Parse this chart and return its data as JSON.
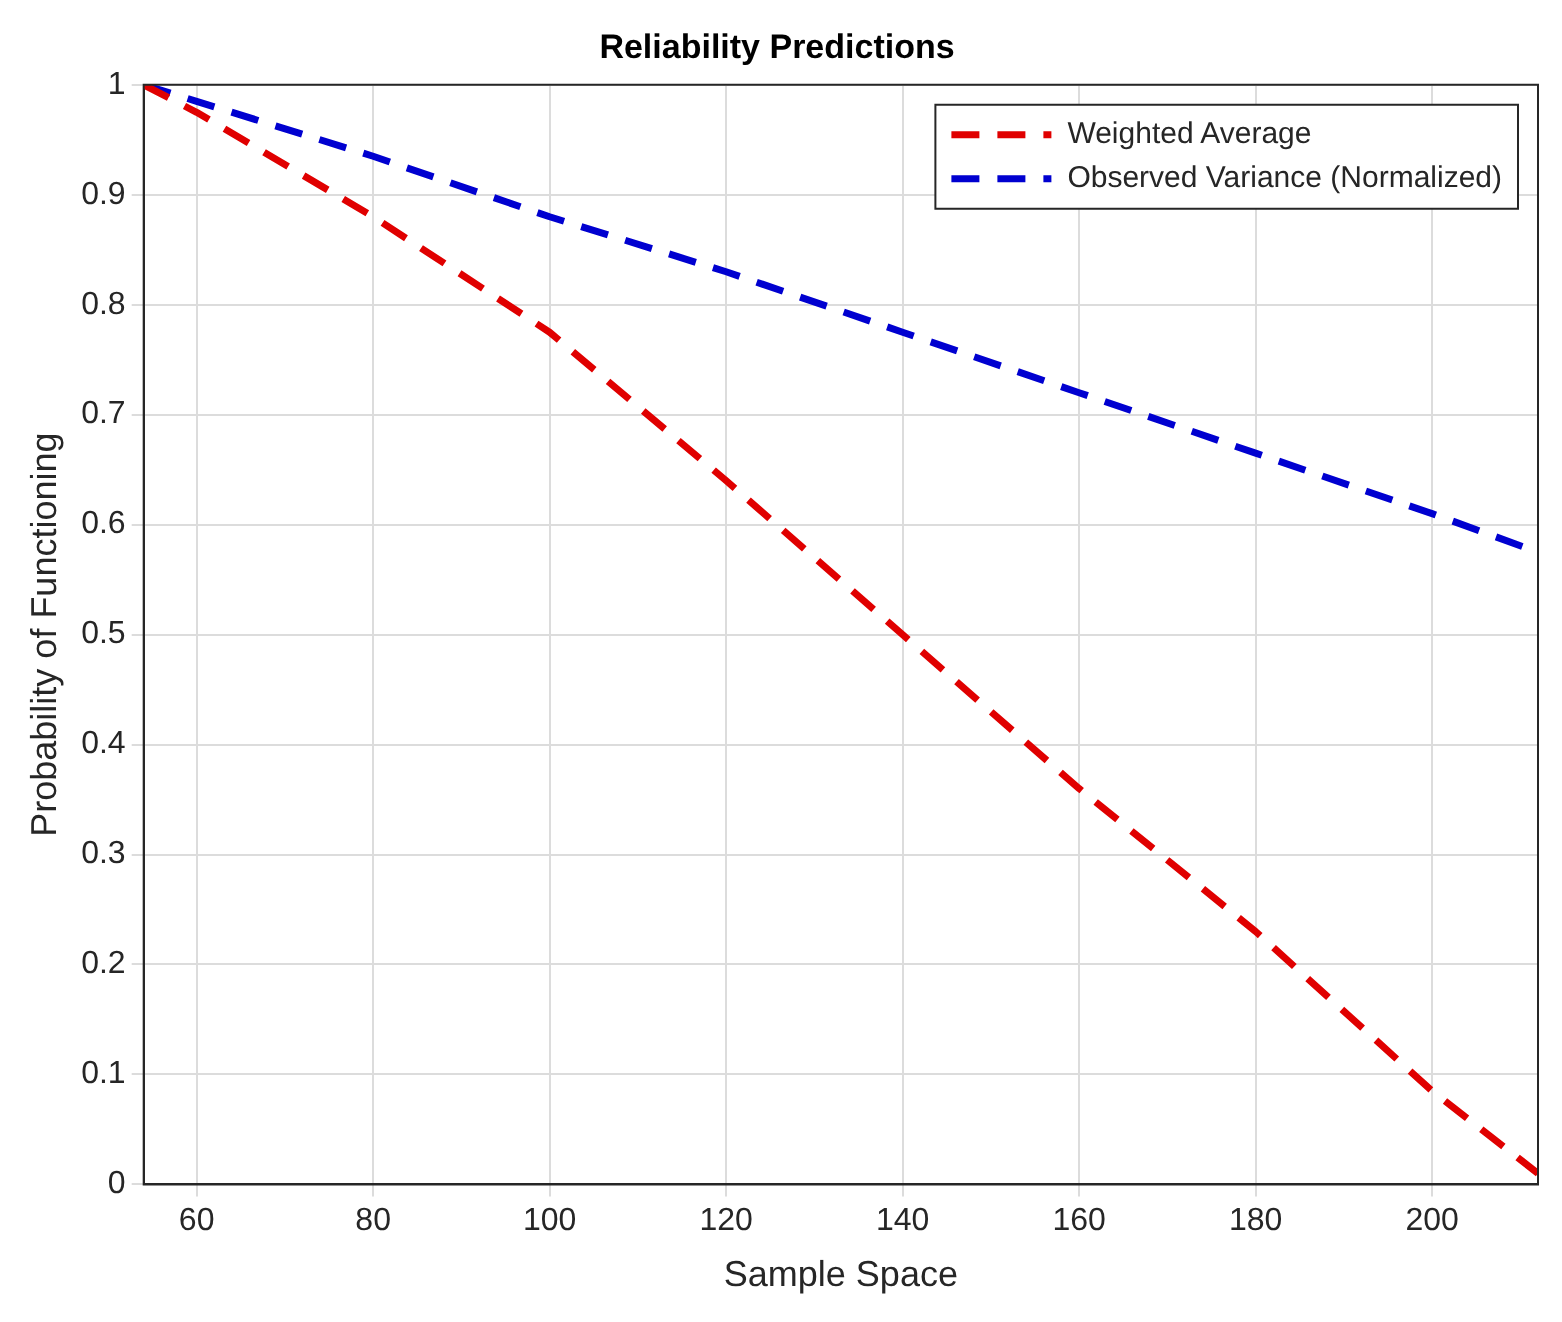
{
  "chart_data": {
    "type": "line",
    "title": "Reliability Predictions",
    "xlabel": "Sample Space",
    "ylabel": "Probability of Functioning",
    "x": [
      54,
      60,
      80,
      100,
      120,
      140,
      160,
      180,
      200,
      212
    ],
    "series": [
      {
        "name": "Weighted Average",
        "color": "#e00000",
        "values": [
          1,
          0.975,
          0.88,
          0.775,
          0.64,
          0.5,
          0.36,
          0.23,
          0.085,
          0.01
        ]
      },
      {
        "name": "Observed Variance (Normalized)",
        "color": "#0000d0",
        "values": [
          1,
          0.985,
          0.935,
          0.88,
          0.83,
          0.775,
          0.72,
          0.665,
          0.61,
          0.575
        ]
      }
    ],
    "xlim": [
      54,
      212
    ],
    "xticks": [
      60,
      80,
      100,
      120,
      140,
      160,
      180,
      200
    ],
    "ylim": [
      0,
      1
    ],
    "yticks": [
      0,
      0.1,
      0.2,
      0.3,
      0.4,
      0.5,
      0.6,
      0.7,
      0.8,
      0.9,
      1
    ],
    "grid": true,
    "legend": "top right",
    "marker": "none",
    "line_style": "dashed"
  }
}
